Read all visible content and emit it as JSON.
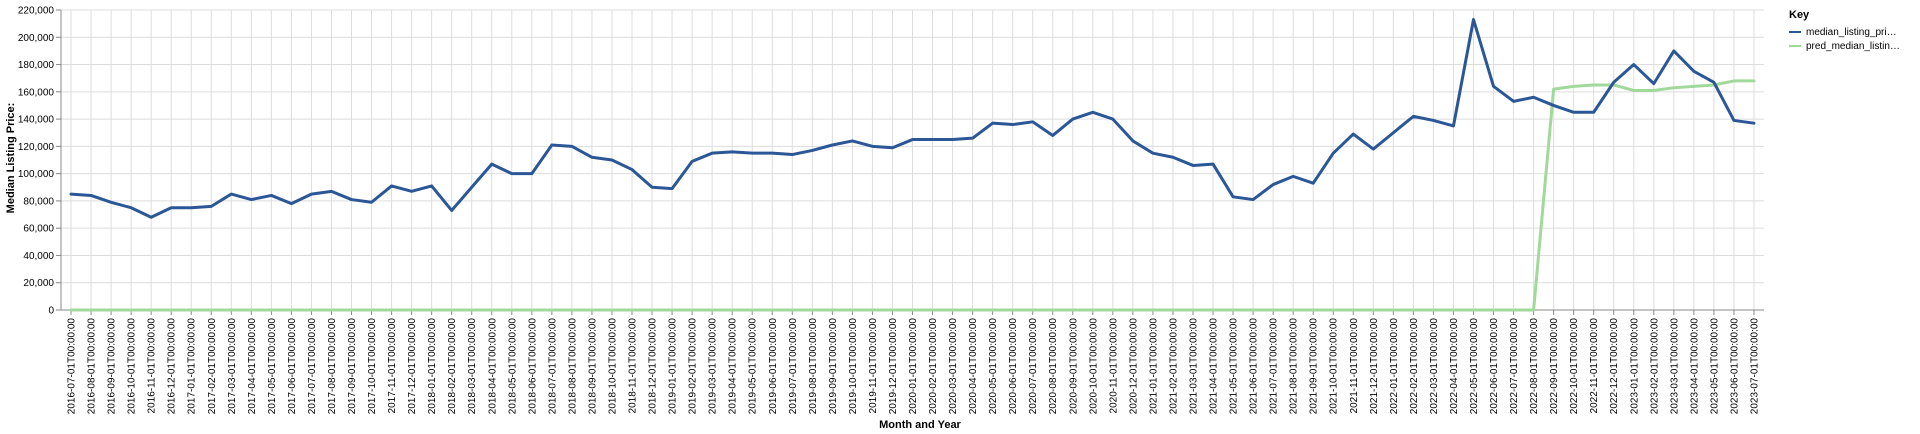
{
  "chart_data": {
    "type": "line",
    "xlabel": "Month and Year",
    "ylabel": "Median Listing Price:",
    "ylim": [
      0,
      220000
    ],
    "y_ticks": [
      "0",
      "20,000",
      "40,000",
      "60,000",
      "80,000",
      "100,000",
      "120,000",
      "140,000",
      "160,000",
      "180,000",
      "200,000",
      "220,000"
    ],
    "grid": true,
    "legend": {
      "title": "Key",
      "placement": "right",
      "entries": [
        "median_listing_pri…",
        "pred_median_listin…"
      ]
    },
    "x": [
      "2016-07-01T00:00:00",
      "2016-08-01T00:00:00",
      "2016-09-01T00:00:00",
      "2016-10-01T00:00:00",
      "2016-11-01T00:00:00",
      "2016-12-01T00:00:00",
      "2017-01-01T00:00:00",
      "2017-02-01T00:00:00",
      "2017-03-01T00:00:00",
      "2017-04-01T00:00:00",
      "2017-05-01T00:00:00",
      "2017-06-01T00:00:00",
      "2017-07-01T00:00:00",
      "2017-08-01T00:00:00",
      "2017-09-01T00:00:00",
      "2017-10-01T00:00:00",
      "2017-11-01T00:00:00",
      "2017-12-01T00:00:00",
      "2018-01-01T00:00:00",
      "2018-02-01T00:00:00",
      "2018-03-01T00:00:00",
      "2018-04-01T00:00:00",
      "2018-05-01T00:00:00",
      "2018-06-01T00:00:00",
      "2018-07-01T00:00:00",
      "2018-08-01T00:00:00",
      "2018-09-01T00:00:00",
      "2018-10-01T00:00:00",
      "2018-11-01T00:00:00",
      "2018-12-01T00:00:00",
      "2019-01-01T00:00:00",
      "2019-02-01T00:00:00",
      "2019-03-01T00:00:00",
      "2019-04-01T00:00:00",
      "2019-05-01T00:00:00",
      "2019-06-01T00:00:00",
      "2019-07-01T00:00:00",
      "2019-08-01T00:00:00",
      "2019-09-01T00:00:00",
      "2019-10-01T00:00:00",
      "2019-11-01T00:00:00",
      "2019-12-01T00:00:00",
      "2020-01-01T00:00:00",
      "2020-02-01T00:00:00",
      "2020-03-01T00:00:00",
      "2020-04-01T00:00:00",
      "2020-05-01T00:00:00",
      "2020-06-01T00:00:00",
      "2020-07-01T00:00:00",
      "2020-08-01T00:00:00",
      "2020-09-01T00:00:00",
      "2020-10-01T00:00:00",
      "2020-11-01T00:00:00",
      "2020-12-01T00:00:00",
      "2021-01-01T00:00:00",
      "2021-02-01T00:00:00",
      "2021-03-01T00:00:00",
      "2021-04-01T00:00:00",
      "2021-05-01T00:00:00",
      "2021-06-01T00:00:00",
      "2021-07-01T00:00:00",
      "2021-08-01T00:00:00",
      "2021-09-01T00:00:00",
      "2021-10-01T00:00:00",
      "2021-11-01T00:00:00",
      "2021-12-01T00:00:00",
      "2022-01-01T00:00:00",
      "2022-02-01T00:00:00",
      "2022-03-01T00:00:00",
      "2022-04-01T00:00:00",
      "2022-05-01T00:00:00",
      "2022-06-01T00:00:00",
      "2022-07-01T00:00:00",
      "2022-08-01T00:00:00",
      "2022-09-01T00:00:00",
      "2022-10-01T00:00:00",
      "2022-11-01T00:00:00",
      "2022-12-01T00:00:00",
      "2023-01-01T00:00:00",
      "2023-02-01T00:00:00",
      "2023-03-01T00:00:00",
      "2023-04-01T00:00:00",
      "2023-05-01T00:00:00",
      "2023-06-01T00:00:00",
      "2023-07-01T00:00:00"
    ],
    "series": [
      {
        "name": "median_listing_pri…",
        "color": "#2b5797",
        "values": [
          85000,
          84000,
          79000,
          75000,
          68000,
          75000,
          75000,
          76000,
          85000,
          81000,
          84000,
          78000,
          85000,
          87000,
          81000,
          79000,
          91000,
          87000,
          91000,
          73000,
          90000,
          107000,
          100000,
          100000,
          121000,
          120000,
          112000,
          110000,
          103000,
          90000,
          89000,
          109000,
          115000,
          116000,
          115000,
          115000,
          114000,
          117000,
          121000,
          124000,
          120000,
          119000,
          125000,
          125000,
          125000,
          126000,
          137000,
          136000,
          138000,
          128000,
          140000,
          145000,
          140000,
          124000,
          115000,
          112000,
          106000,
          107000,
          83000,
          81000,
          92000,
          98000,
          93000,
          115000,
          129000,
          118000,
          130000,
          142000,
          139000,
          135000,
          213000,
          164000,
          153000,
          156000,
          150000,
          145000,
          145000,
          167000,
          180000,
          166000,
          190000,
          175000,
          167000,
          139000,
          137000
        ]
      },
      {
        "name": "pred_median_listin…",
        "color": "#a1d99b",
        "values": [
          0,
          0,
          0,
          0,
          0,
          0,
          0,
          0,
          0,
          0,
          0,
          0,
          0,
          0,
          0,
          0,
          0,
          0,
          0,
          0,
          0,
          0,
          0,
          0,
          0,
          0,
          0,
          0,
          0,
          0,
          0,
          0,
          0,
          0,
          0,
          0,
          0,
          0,
          0,
          0,
          0,
          0,
          0,
          0,
          0,
          0,
          0,
          0,
          0,
          0,
          0,
          0,
          0,
          0,
          0,
          0,
          0,
          0,
          0,
          0,
          0,
          0,
          0,
          0,
          0,
          0,
          0,
          0,
          0,
          0,
          0,
          0,
          0,
          0,
          162000,
          164000,
          165000,
          165000,
          161000,
          161000,
          163000,
          164000,
          165000,
          168000,
          168000
        ]
      }
    ]
  }
}
